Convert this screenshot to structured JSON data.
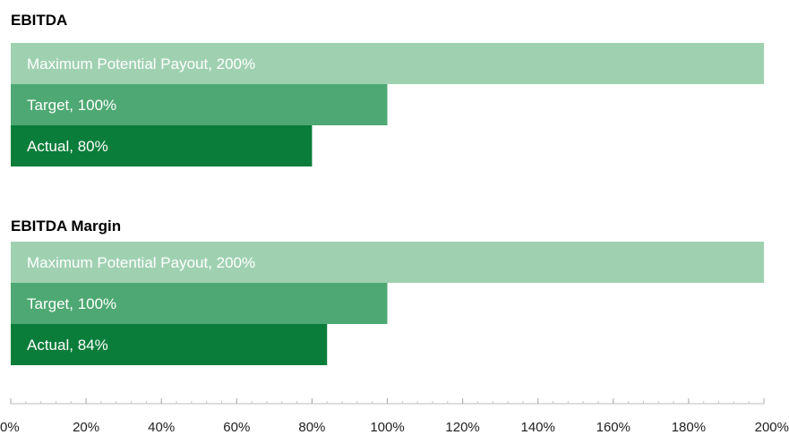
{
  "chart_data": {
    "type": "bar",
    "orientation": "horizontal",
    "groups": [
      {
        "title": "EBITDA",
        "bars": [
          {
            "label": "Maximum Potential Payout, 200%",
            "value": 200
          },
          {
            "label": "Target, 100%",
            "value": 100
          },
          {
            "label": "Actual, 80%",
            "value": 80
          }
        ]
      },
      {
        "title": "EBITDA Margin",
        "bars": [
          {
            "label": "Maximum Potential Payout, 200%",
            "value": 200
          },
          {
            "label": "Target, 100%",
            "value": 100
          },
          {
            "label": "Actual, 84%",
            "value": 84
          }
        ]
      }
    ],
    "xlim": [
      0,
      200
    ],
    "x_ticks": [
      "0%",
      "20%",
      "40%",
      "60%",
      "80%",
      "100%",
      "120%",
      "140%",
      "160%",
      "180%",
      "200%"
    ],
    "grid": false,
    "colors": [
      "#9fd1b1",
      "#4ea873",
      "#0a7d3a"
    ]
  }
}
